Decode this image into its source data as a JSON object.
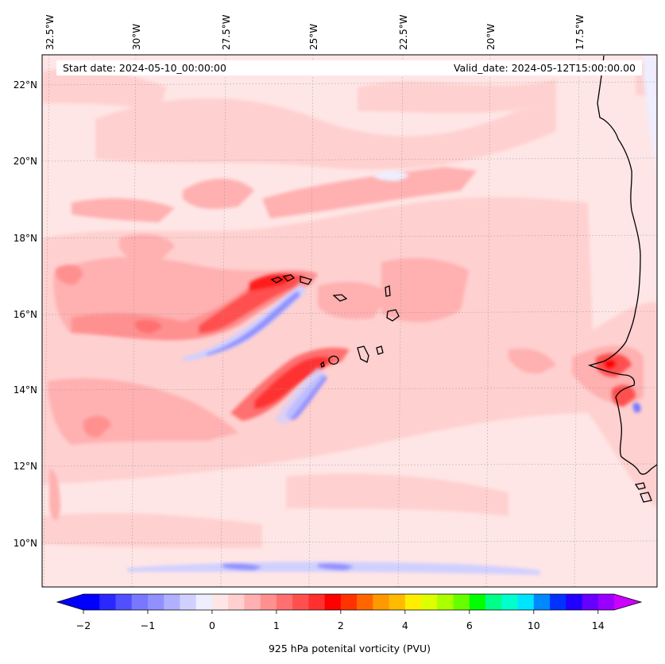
{
  "map": {
    "start_date": "Start date: 2024-05-10_00:00:00",
    "valid_date": "Valid_date: 2024-05-12T15:00:00.00",
    "lon_labels": [
      "32.5°W",
      "30°W",
      "27.5°W",
      "25°W",
      "22.5°W",
      "20°W",
      "17.5°W"
    ],
    "lat_labels": [
      "22°N",
      "20°N",
      "18°N",
      "16°N",
      "14°N",
      "12°N",
      "10°N"
    ],
    "variable_label": "925 hPa potenital vorticity (PVU)",
    "extent": {
      "lon_min": -33.0,
      "lon_max": -15.2,
      "lat_min": 8.9,
      "lat_max": 22.8
    }
  },
  "colorbar": {
    "colors": [
      "#0000ff",
      "#2828ff",
      "#5050ff",
      "#7878ff",
      "#9090ff",
      "#b0b0ff",
      "#d0d0ff",
      "#eeeeff",
      "#ffe6e6",
      "#ffd0d0",
      "#ffb0b0",
      "#ff9090",
      "#ff7070",
      "#ff5050",
      "#ff3030",
      "#ff0000",
      "#ff3300",
      "#ff6600",
      "#ff9900",
      "#ffbb00",
      "#ffee00",
      "#ddff00",
      "#aaff00",
      "#66ff00",
      "#00ff00",
      "#00ff88",
      "#00ffcc",
      "#00e5ff",
      "#0088ff",
      "#0033ff",
      "#2200ff",
      "#6600ff",
      "#9900ff"
    ],
    "extend_low_color": "#0000ff",
    "extend_high_color": "#cc00ff",
    "ticks": [
      "−2",
      "−1",
      "0",
      "1",
      "2",
      "4",
      "6",
      "10",
      "14"
    ]
  },
  "chart_data": {
    "type": "heatmap",
    "title": "Start date: 2024-05-10_00:00:00 / Valid_date: 2024-05-12T15:00:00.00",
    "variable": "925 hPa potenital vorticity (PVU)",
    "x_range": [
      -33.0,
      -15.2
    ],
    "y_range": [
      8.9,
      22.8
    ],
    "background_value": 0.1,
    "features": [
      {
        "name": "Cape Verde wake positive streak (north)",
        "lon": [
          -29.5,
          -24.6
        ],
        "lat": [
          15.3,
          16.9
        ],
        "max_pvu": 1.8
      },
      {
        "name": "Cape Verde wake negative streak (north)",
        "lon": [
          -27.5,
          -24.8
        ],
        "lat": [
          14.9,
          16.6
        ],
        "min_pvu": -1.3
      },
      {
        "name": "Cape Verde wake positive streak (south)",
        "lon": [
          -27.0,
          -23.8
        ],
        "lat": [
          13.2,
          14.8
        ],
        "max_pvu": 1.8
      },
      {
        "name": "Cape Verde wake negative streak (south)",
        "lon": [
          -25.5,
          -24.5
        ],
        "lat": [
          13.2,
          14.3
        ],
        "min_pvu": -1.2
      },
      {
        "name": "Senegal coast maximum",
        "lon": [
          -17.5,
          -16.0
        ],
        "lat": [
          13.5,
          15.0
        ],
        "max_pvu": 2.0
      },
      {
        "name": "Southern negative band",
        "lon": [
          -31.0,
          -17.5
        ],
        "lat": [
          9.4,
          9.6
        ],
        "min_pvu": -0.8
      }
    ]
  }
}
